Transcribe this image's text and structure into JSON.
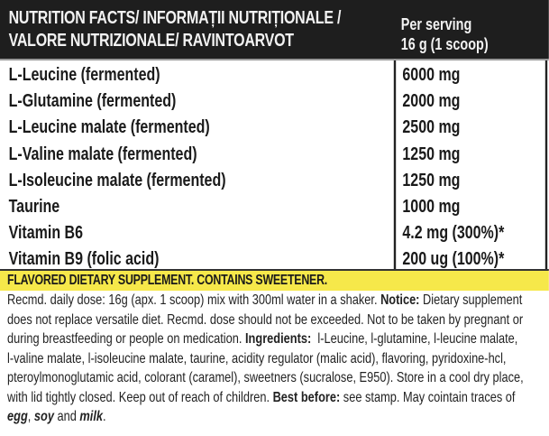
{
  "header": {
    "title_line1": "NUTRITION FACTS/ INFORMAȚII NUTRIȚIONALE /",
    "title_line2": "VALORE NUTRIZIONALE/ RAVINTOARVOT",
    "serving_line1": "Per serving",
    "serving_line2": "16 g (1 scoop)"
  },
  "rows": [
    {
      "name": "L-Leucine (fermented)",
      "value": "6000 mg"
    },
    {
      "name": "L-Glutamine (fermented)",
      "value": "2000 mg"
    },
    {
      "name": "L-Leucine malate (fermented)",
      "value": "2500 mg"
    },
    {
      "name": "L-Valine malate (fermented)",
      "value": "1250 mg"
    },
    {
      "name": "L-Isoleucine malate (fermented)",
      "value": "1250 mg"
    },
    {
      "name": "Taurine",
      "value": "1000 mg"
    },
    {
      "name": "Vitamin B6",
      "value": "4.2 mg (300%)*"
    },
    {
      "name": "Vitamin B9 (folic acid)",
      "value": "200 ug (100%)*"
    }
  ],
  "banner": "FLAVORED DIETARY SUPPLEMENT. CONTAINS SWEETENER.",
  "banner_color": "#f6e84a",
  "footer": {
    "l1a": "Recmd. daily dose: 16g (apx. 1 scoop) mix with 300ml water in a shaker. ",
    "l1b": "Notice:",
    "l1c": " Dietary supplement",
    "l2": "does not replace versatile diet. Recmd. dose should not be exceeded. Not to be taken by pregnant or",
    "l3a": "during breastfeeding or people on medication. ",
    "l3b": "Ingredients:",
    "l3c": "  l-Leucine, l-glutamine, l-leucine malate,",
    "l4": "l-valine malate, l-isoleucine malate, taurine, acidity regulator (malic acid), flavoring, pyridoxine-hcl,",
    "l5": "pteroylmonoglutamic acid, colorant (caramel), sweetners (sucralose, E950). Store in a cool dry place,",
    "l6a": "with lid tightly closed. Keep out of reach of children. ",
    "l6b": "Best before:",
    "l6c": " see stamp. May cointain traces of",
    "l7a": "egg",
    "l7b": ", ",
    "l7c": "soy",
    "l7d": " and ",
    "l7e": "milk",
    "l7f": "."
  }
}
